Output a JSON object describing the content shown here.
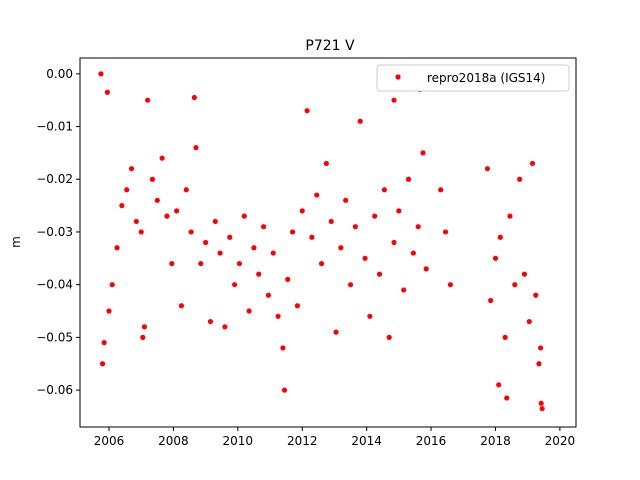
{
  "chart_data": {
    "type": "scatter",
    "title": "P721 V",
    "xlabel": "",
    "ylabel": "m",
    "xlim": [
      2005.1,
      2020.5
    ],
    "ylim": [
      -0.067,
      0.003
    ],
    "xticks": [
      2006,
      2008,
      2010,
      2012,
      2014,
      2016,
      2018,
      2020
    ],
    "xtick_labels": [
      "2006",
      "2008",
      "2010",
      "2012",
      "2014",
      "2016",
      "2018",
      "2020"
    ],
    "yticks": [
      0.0,
      -0.01,
      -0.02,
      -0.03,
      -0.04,
      -0.05,
      -0.06
    ],
    "ytick_labels": [
      "0.00",
      "−0.01",
      "−0.02",
      "−0.03",
      "−0.04",
      "−0.05",
      "−0.06"
    ],
    "grid": false,
    "legend": {
      "placement": "top-right",
      "entries": [
        "repro2018a (IGS14)"
      ]
    },
    "series": [
      {
        "name": "repro2018a (IGS14)",
        "color": "#ff0000",
        "marker": "dot",
        "points": [
          [
            2005.75,
            0.0
          ],
          [
            2005.95,
            -0.0035
          ],
          [
            2005.8,
            -0.055
          ],
          [
            2005.85,
            -0.051
          ],
          [
            2011.45,
            -0.06
          ],
          [
            2019.45,
            -0.0635
          ],
          [
            2019.42,
            -0.0625
          ],
          [
            2015.65,
            -0.003
          ],
          [
            2014.85,
            -0.005
          ],
          [
            2008.65,
            -0.0045
          ],
          [
            2018.35,
            -0.0615
          ],
          [
            2018.1,
            -0.059
          ],
          [
            2006.0,
            -0.045
          ],
          [
            2006.1,
            -0.04
          ],
          [
            2006.25,
            -0.033
          ],
          [
            2006.4,
            -0.025
          ],
          [
            2006.55,
            -0.022
          ],
          [
            2006.7,
            -0.018
          ],
          [
            2006.85,
            -0.028
          ],
          [
            2007.0,
            -0.03
          ],
          [
            2007.1,
            -0.048
          ],
          [
            2007.05,
            -0.05
          ],
          [
            2007.2,
            -0.005
          ],
          [
            2007.35,
            -0.02
          ],
          [
            2007.5,
            -0.024
          ],
          [
            2007.65,
            -0.016
          ],
          [
            2007.8,
            -0.027
          ],
          [
            2007.95,
            -0.036
          ],
          [
            2008.1,
            -0.026
          ],
          [
            2008.25,
            -0.044
          ],
          [
            2008.4,
            -0.022
          ],
          [
            2008.55,
            -0.03
          ],
          [
            2008.7,
            -0.014
          ],
          [
            2008.85,
            -0.036
          ],
          [
            2009.0,
            -0.032
          ],
          [
            2009.15,
            -0.047
          ],
          [
            2009.3,
            -0.028
          ],
          [
            2009.45,
            -0.034
          ],
          [
            2009.6,
            -0.048
          ],
          [
            2009.75,
            -0.031
          ],
          [
            2009.9,
            -0.04
          ],
          [
            2010.05,
            -0.036
          ],
          [
            2010.2,
            -0.027
          ],
          [
            2010.35,
            -0.045
          ],
          [
            2010.5,
            -0.033
          ],
          [
            2010.65,
            -0.038
          ],
          [
            2010.8,
            -0.029
          ],
          [
            2010.95,
            -0.042
          ],
          [
            2011.1,
            -0.034
          ],
          [
            2011.25,
            -0.046
          ],
          [
            2011.4,
            -0.052
          ],
          [
            2011.55,
            -0.039
          ],
          [
            2011.7,
            -0.03
          ],
          [
            2011.85,
            -0.044
          ],
          [
            2012.0,
            -0.026
          ],
          [
            2012.15,
            -0.007
          ],
          [
            2012.3,
            -0.031
          ],
          [
            2012.45,
            -0.023
          ],
          [
            2012.6,
            -0.036
          ],
          [
            2012.75,
            -0.017
          ],
          [
            2012.9,
            -0.028
          ],
          [
            2013.05,
            -0.049
          ],
          [
            2013.2,
            -0.033
          ],
          [
            2013.35,
            -0.024
          ],
          [
            2013.5,
            -0.04
          ],
          [
            2013.65,
            -0.029
          ],
          [
            2013.8,
            -0.009
          ],
          [
            2013.95,
            -0.035
          ],
          [
            2014.1,
            -0.046
          ],
          [
            2014.25,
            -0.027
          ],
          [
            2014.4,
            -0.038
          ],
          [
            2014.55,
            -0.022
          ],
          [
            2014.7,
            -0.05
          ],
          [
            2014.85,
            -0.032
          ],
          [
            2015.0,
            -0.026
          ],
          [
            2015.15,
            -0.041
          ],
          [
            2015.3,
            -0.02
          ],
          [
            2015.45,
            -0.034
          ],
          [
            2015.6,
            -0.029
          ],
          [
            2015.75,
            -0.015
          ],
          [
            2015.85,
            -0.037
          ],
          [
            2016.3,
            -0.022
          ],
          [
            2016.45,
            -0.03
          ],
          [
            2016.6,
            -0.04
          ],
          [
            2017.75,
            -0.018
          ],
          [
            2017.85,
            -0.043
          ],
          [
            2018.0,
            -0.035
          ],
          [
            2018.15,
            -0.031
          ],
          [
            2018.3,
            -0.05
          ],
          [
            2018.45,
            -0.027
          ],
          [
            2018.6,
            -0.04
          ],
          [
            2018.75,
            -0.02
          ],
          [
            2018.9,
            -0.038
          ],
          [
            2019.05,
            -0.047
          ],
          [
            2019.15,
            -0.017
          ],
          [
            2019.25,
            -0.042
          ],
          [
            2019.35,
            -0.055
          ],
          [
            2019.4,
            -0.052
          ]
        ]
      }
    ]
  }
}
